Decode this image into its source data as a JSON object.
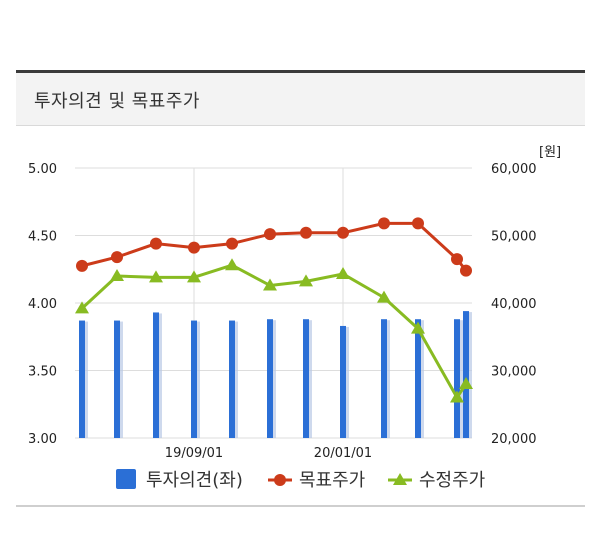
{
  "header": {
    "title": "투자의견 및 목표주가"
  },
  "chart_data": {
    "type": "bar+line",
    "unit_label": "[원]",
    "x_ticks": [
      "19/09/01",
      "20/01/01"
    ],
    "left_axis": {
      "ticks": [
        "5.00",
        "4.50",
        "4.00",
        "3.50",
        "3.00"
      ],
      "range": [
        3.0,
        5.0
      ]
    },
    "right_axis": {
      "ticks": [
        "60,000",
        "50,000",
        "40,000",
        "30,000",
        "20,000"
      ],
      "range": [
        20000,
        60000
      ]
    },
    "points": [
      {
        "opinion": 3.87,
        "target": 45500,
        "adjusted": 39200
      },
      {
        "opinion": 3.87,
        "target": 46800,
        "adjusted": 44000
      },
      {
        "opinion": 3.93,
        "target": 48800,
        "adjusted": 43800
      },
      {
        "opinion": 3.87,
        "target": 48200,
        "adjusted": 43800
      },
      {
        "opinion": 3.87,
        "target": 48800,
        "adjusted": 45600
      },
      {
        "opinion": 3.88,
        "target": 50200,
        "adjusted": 42600
      },
      {
        "opinion": 3.88,
        "target": 50400,
        "adjusted": 43200
      },
      {
        "opinion": 3.83,
        "target": 50400,
        "adjusted": 44300
      },
      {
        "opinion": 3.88,
        "target": 51800,
        "adjusted": 40800
      },
      {
        "opinion": 3.88,
        "target": 51800,
        "adjusted": 36200
      },
      {
        "opinion": 3.88,
        "target": 46500,
        "adjusted": 26000
      },
      {
        "opinion": 3.94,
        "target": 44800,
        "adjusted": 28000
      }
    ],
    "series": [
      {
        "name": "투자의견(좌)",
        "key": "opinion",
        "color": "#2b6fd6",
        "axis": "left",
        "kind": "bar"
      },
      {
        "name": "목표주가",
        "key": "target",
        "color": "#cc3b1a",
        "axis": "right",
        "kind": "line"
      },
      {
        "name": "수정주가",
        "key": "adjusted",
        "color": "#88bb22",
        "axis": "right",
        "kind": "line"
      }
    ],
    "grid": true,
    "legend": "bottom"
  }
}
